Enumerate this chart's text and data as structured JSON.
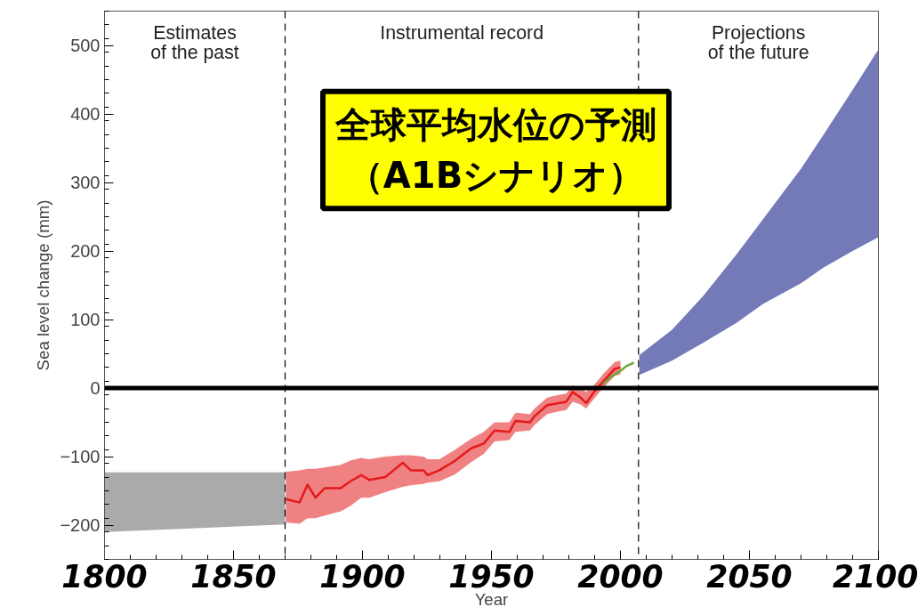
{
  "chart_data": {
    "type": "line",
    "title": "全球平均水位の予測",
    "subtitle": "（A1Bシナリオ）",
    "xlabel": "Year",
    "ylabel": "Sea level change (mm)",
    "xlim": [
      1800,
      2100
    ],
    "ylim": [
      -250,
      550
    ],
    "xticks": [
      1800,
      1850,
      1900,
      1950,
      2000,
      2050,
      2100
    ],
    "yticks": [
      -200,
      -100,
      0,
      100,
      200,
      300,
      400,
      500
    ],
    "grid": false,
    "marker": "none",
    "series": [
      {
        "color": "#aaaaaa",
        "x": [
          1800,
          1870
        ],
        "values": [
          null,
          null
        ],
        "upper": [
          -123,
          -123
        ],
        "lower": [
          -210,
          -199
        ]
      },
      {
        "color": "#e41a1c",
        "x": [
          1870.3,
          1875.6,
          1878.7,
          1881.8,
          1885.4,
          1891.6,
          1895.3,
          1899.5,
          1902.6,
          1908.8,
          1915.6,
          1918.7,
          1923.6,
          1925.3,
          1929.8,
          1935.9,
          1942.1,
          1947,
          1951.2,
          1956.9,
          1959.3,
          1964.9,
          1966.7,
          1971.6,
          1976,
          1979,
          1981.5,
          1984.6,
          1986.7,
          1989.7,
          1993.2,
          1997.8,
          2000
        ],
        "values": [
          -162,
          -167,
          -141,
          -160,
          -146,
          -146,
          -136,
          -127,
          -134,
          -130,
          -109,
          -120,
          -120,
          -127,
          -120,
          -106,
          -88,
          -81,
          -62,
          -64,
          -48,
          -50,
          -41,
          -25,
          -22,
          -20,
          -6,
          -14,
          -22,
          -6,
          9,
          28,
          30
        ],
        "lower": [
          -196,
          -198,
          -190,
          -190,
          -186,
          -180,
          -172,
          -160,
          -160,
          -152,
          -144,
          -142,
          -140,
          -138,
          -136,
          -126,
          -108,
          -96,
          -78,
          -76,
          -64,
          -62,
          -54,
          -38,
          -34,
          -32,
          -20,
          -24,
          -30,
          -16,
          0,
          18,
          20
        ],
        "upper": [
          -122,
          -120,
          -118,
          -118,
          -116,
          -112,
          -106,
          -102,
          -104,
          -100,
          -98,
          -98,
          -100,
          -104,
          -104,
          -90,
          -74,
          -64,
          -50,
          -50,
          -36,
          -38,
          -30,
          -14,
          -10,
          -8,
          4,
          0,
          -6,
          4,
          20,
          38,
          40
        ]
      },
      {
        "color": "#6aaa3a",
        "x": [
          1993.2,
          1996.6,
          2000,
          2002.3,
          2005.2
        ],
        "values": [
          6,
          17,
          25,
          32,
          37
        ]
      },
      {
        "color": "#7479b8",
        "x": [
          2007.3,
          2020,
          2032,
          2045,
          2055.4,
          2070,
          2078.8,
          2090,
          2100
        ],
        "values": [
          null,
          null,
          null,
          null,
          null,
          null,
          null,
          null,
          null
        ],
        "upper": [
          48,
          85,
          134,
          195,
          247,
          320,
          370,
          435,
          494
        ],
        "lower": [
          19,
          40,
          66,
          95,
          123,
          153,
          176,
          200,
          220
        ]
      }
    ],
    "ref_lines": [
      {
        "axis": "y",
        "value": 0,
        "color": "#000000",
        "line_style": "solid"
      },
      {
        "axis": "x",
        "value": 1870,
        "color": "#000000",
        "line_style": "dashed"
      },
      {
        "axis": "x",
        "value": 2007,
        "color": "#000000",
        "line_style": "dashed"
      }
    ],
    "annotations": [
      "Estimates\nof the past",
      "Instrumental record",
      "Projections\nof the future"
    ]
  }
}
